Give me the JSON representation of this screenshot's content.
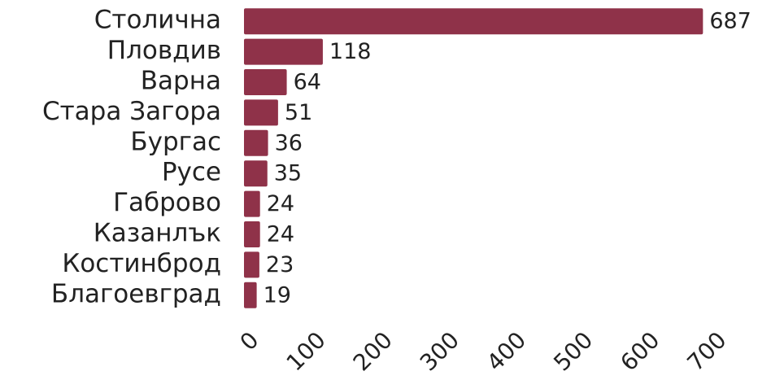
{
  "chart_data": {
    "type": "bar",
    "orientation": "horizontal",
    "categories": [
      "Столична",
      "Пловдив",
      "Варна",
      "Стара Загора",
      "Бургас",
      "Русе",
      "Габрово",
      "Казанлък",
      "Костинброд",
      "Благоевград"
    ],
    "values": [
      687,
      118,
      64,
      51,
      36,
      35,
      24,
      24,
      23,
      19
    ],
    "color": "#8f3249",
    "xlim": [
      0,
      700
    ],
    "xticks": [
      0,
      100,
      200,
      300,
      400,
      500,
      600,
      700
    ],
    "grid": false
  }
}
